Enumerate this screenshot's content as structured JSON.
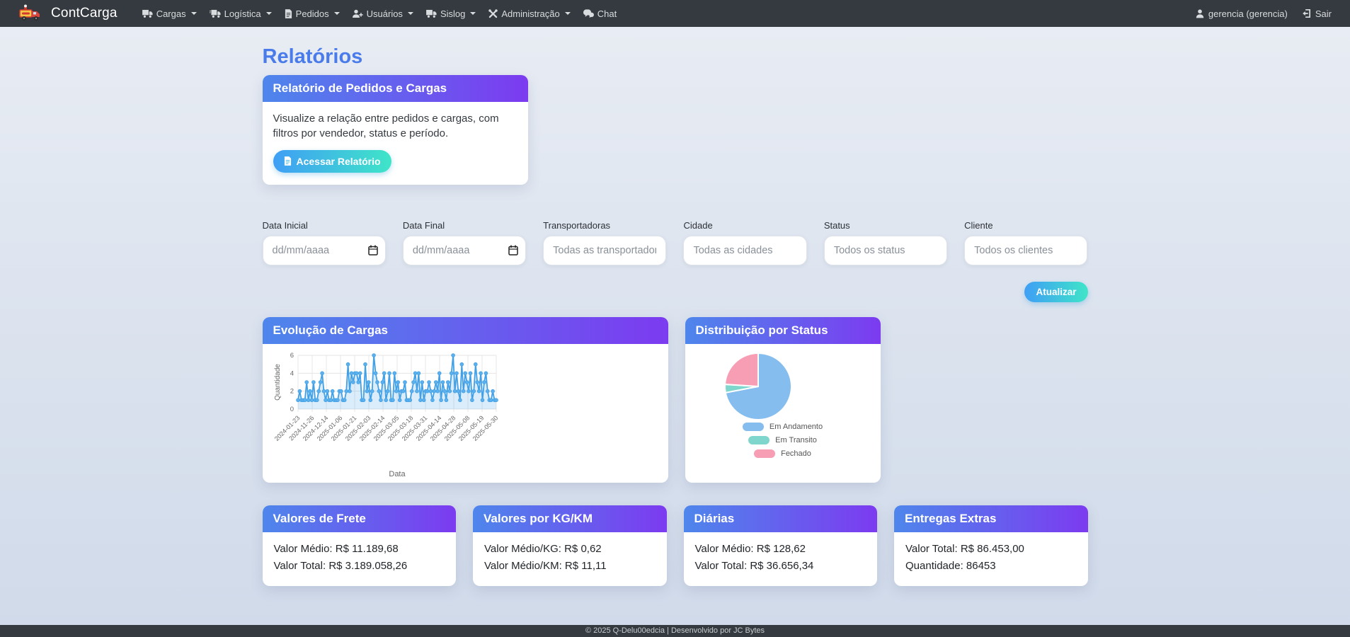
{
  "navbar": {
    "brand": "ContCarga",
    "items": [
      {
        "label": "Cargas",
        "icon": "truck-icon",
        "caret": true
      },
      {
        "label": "Logística",
        "icon": "truck-fast-icon",
        "caret": true
      },
      {
        "label": "Pedidos",
        "icon": "file-icon",
        "caret": true
      },
      {
        "label": "Usuários",
        "icon": "user-plus-icon",
        "caret": true
      },
      {
        "label": "Sislog",
        "icon": "truck-icon",
        "caret": true
      },
      {
        "label": "Administração",
        "icon": "tools-icon",
        "caret": true
      },
      {
        "label": "Chat",
        "icon": "chat-icon",
        "caret": false
      }
    ],
    "user": "gerencia (gerencia)",
    "logout": "Sair"
  },
  "page": {
    "title": "Relatórios"
  },
  "report_card": {
    "title": "Relatório de Pedidos e Cargas",
    "description": "Visualize a relação entre pedidos e cargas, com filtros por vendedor, status e período.",
    "button": "Acessar Relatório"
  },
  "filters": [
    {
      "label": "Data Inicial",
      "placeholder": "dd/mm/aaaa",
      "type": "date"
    },
    {
      "label": "Data Final",
      "placeholder": "dd/mm/aaaa",
      "type": "date"
    },
    {
      "label": "Transportadoras",
      "placeholder": "Todas as transportadoras",
      "type": "select"
    },
    {
      "label": "Cidade",
      "placeholder": "Todas as cidades",
      "type": "select"
    },
    {
      "label": "Status",
      "placeholder": "Todos os status",
      "type": "select"
    },
    {
      "label": "Cliente",
      "placeholder": "Todos os clientes",
      "type": "select"
    }
  ],
  "update_button": "Atualizar",
  "chart_data": [
    {
      "type": "line",
      "title": "Evolução de Cargas",
      "xlabel": "Data",
      "ylabel": "Quantidade",
      "ylim": [
        0,
        6
      ],
      "yticks": [
        0,
        2,
        4,
        6
      ],
      "grid": true,
      "line_color": "#41a0e6",
      "marker_color": "#5cb0ec",
      "fill_color": "rgba(77,166,232,0.20)",
      "x_tick_labels": [
        "2024-01-23",
        "2024-11-26",
        "2024-12-14",
        "2025-01-06",
        "2025-01-21",
        "2025-02-03",
        "2025-02-14",
        "2025-03-05",
        "2025-03-18",
        "2025-03-31",
        "2025-04-14",
        "2025-04-28",
        "2025-05-08",
        "2025-05-19",
        "2025-05-30"
      ],
      "values": [
        1,
        2,
        1,
        1,
        1,
        3,
        1,
        2,
        1,
        3,
        1,
        1,
        2,
        3,
        4,
        2,
        1,
        2,
        1,
        1,
        2,
        1,
        1,
        1,
        2,
        2,
        1,
        1,
        2,
        5,
        2,
        4,
        3,
        4,
        4,
        3,
        4,
        1,
        1,
        5,
        2,
        3,
        1,
        2,
        6,
        4,
        3,
        2,
        1,
        3,
        4,
        1,
        2,
        4,
        1,
        1,
        4,
        2,
        3,
        1,
        2,
        2,
        3,
        1,
        1,
        1,
        2,
        3,
        4,
        2,
        4,
        1,
        3,
        1,
        2,
        2,
        3,
        2,
        1,
        2,
        3,
        2,
        4,
        1,
        3,
        2,
        1,
        3,
        2,
        4,
        6,
        2,
        4,
        2,
        1,
        5,
        2,
        4,
        3,
        2,
        4,
        1,
        2,
        5,
        3,
        2,
        4,
        1,
        3,
        4,
        2,
        1,
        1,
        2,
        1,
        1
      ]
    },
    {
      "type": "pie",
      "title": "Distribuição por Status",
      "labels": [
        "Em Andamento",
        "Em Transito",
        "Fechado"
      ],
      "values": [
        72,
        4,
        24
      ],
      "colors": [
        "#85bdee",
        "#7fd6cc",
        "#f79db4"
      ],
      "legend_position": "bottom"
    }
  ],
  "stat_cards": [
    {
      "title": "Valores de Frete",
      "lines": [
        "Valor Médio: R$ 11.189,68",
        "Valor Total: R$ 3.189.058,26"
      ]
    },
    {
      "title": "Valores por KG/KM",
      "lines": [
        "Valor Médio/KG: R$ 0,62",
        "Valor Médio/KM: R$ 11,11"
      ]
    },
    {
      "title": "Diárias",
      "lines": [
        "Valor Médio: R$ 128,62",
        "Valor Total: R$ 36.656,34"
      ]
    },
    {
      "title": "Entregas Extras",
      "lines": [
        "Valor Total: R$ 86.453,00",
        "Quantidade: 86453"
      ]
    }
  ],
  "footer": "© 2025 Q-Delu00edcia | Desenvolvido por JC Bytes",
  "colors": {
    "navbar_bg": "#343a40",
    "header_gradient_start": "#4e86ec",
    "header_gradient_end": "#7c3bf0",
    "button_gradient_start": "#3f9ef5",
    "button_gradient_end": "#3fe5c8",
    "page_title": "#4a7bea"
  }
}
